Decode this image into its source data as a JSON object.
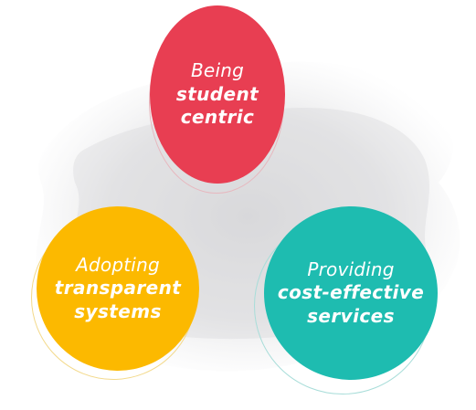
{
  "diagram": {
    "items": [
      {
        "key": "red",
        "light": "Being",
        "bold_lines": [
          "student",
          "centric"
        ],
        "fill": "#e83e52",
        "ring": "#e7b7be"
      },
      {
        "key": "yellow",
        "light": "Adopting",
        "bold_lines": [
          "transparent",
          "systems"
        ],
        "fill": "#fcb900",
        "ring": "#f3d98a"
      },
      {
        "key": "teal",
        "light": "Providing",
        "bold_lines": [
          "cost-effective",
          "services"
        ],
        "fill": "#1ebcb0",
        "ring": "#a8ddd9"
      }
    ],
    "backdrop_color": "#d9d9db"
  }
}
